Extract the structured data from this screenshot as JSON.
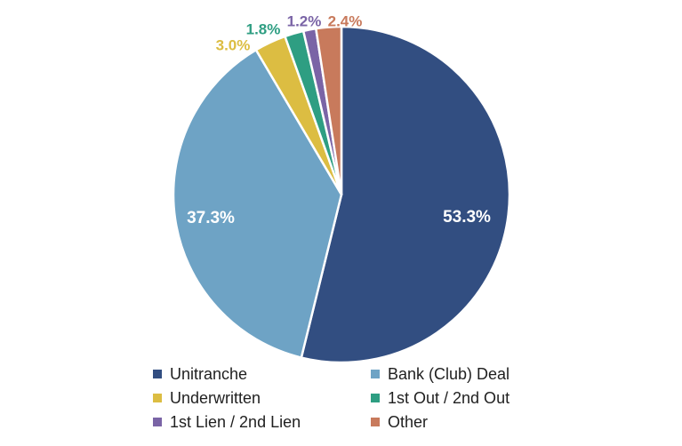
{
  "chart_data": {
    "type": "pie",
    "title": "",
    "start_angle_deg": 0,
    "direction": "clockwise",
    "slices": [
      {
        "label": "Unitranche",
        "value": 53.3,
        "display": "53.3%",
        "color": "#324e81",
        "label_color": "#ffffff",
        "label_position": "inside"
      },
      {
        "label": "Bank (Club) Deal",
        "value": 37.3,
        "display": "37.3%",
        "color": "#6ea3c5",
        "label_color": "#ffffff",
        "label_position": "inside"
      },
      {
        "label": "Underwritten",
        "value": 3.0,
        "display": "3.0%",
        "color": "#dcbd42",
        "label_color": "#dcbd42",
        "label_position": "outside"
      },
      {
        "label": "1st Out / 2nd Out",
        "value": 1.8,
        "display": "1.8%",
        "color": "#2e9e82",
        "label_color": "#2e9e82",
        "label_position": "outside"
      },
      {
        "label": "1st Lien / 2nd Lien",
        "value": 1.2,
        "display": "1.2%",
        "color": "#7a64a6",
        "label_color": "#7a64a6",
        "label_position": "outside"
      },
      {
        "label": "Other",
        "value": 2.4,
        "display": "2.4%",
        "color": "#c87a5c",
        "label_color": "#c87a5c",
        "label_position": "outside"
      }
    ],
    "legend": {
      "placement": "bottom",
      "columns": 2,
      "order": [
        "Unitranche",
        "Bank (Club) Deal",
        "Underwritten",
        "1st Out / 2nd Out",
        "1st Lien / 2nd Lien",
        "Other"
      ]
    }
  }
}
